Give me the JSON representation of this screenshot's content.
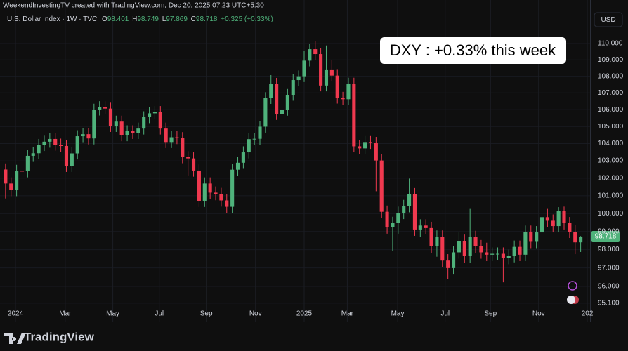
{
  "chart_data": {
    "type": "candlestick",
    "watermark": "WeekendInvestingTV created with TradingView.com, Dec 20, 2025 07:23 UTC+5:30",
    "title": "U.S. Dollar Index · 1W · TVC",
    "ohlc_labels": [
      "O",
      "H",
      "L",
      "C"
    ],
    "change": "+0.325 (+0.33%)",
    "currency": "USD",
    "annotation": "DXY : +0.33% this week",
    "brand": "TradingView",
    "up_color": "#4fb27b",
    "down_color": "#f0394f",
    "log_scale": true,
    "grid": true,
    "open": [
      102.5,
      101.7,
      101.33,
      102.42,
      102.4,
      103.29,
      103.44,
      103.92,
      104.11,
      104.27,
      103.94,
      103.86,
      102.71,
      103.43,
      104.43,
      104.55,
      104.3,
      106.0,
      106.15,
      106.06,
      105.03,
      105.29,
      104.49,
      104.72,
      104.62,
      104.88,
      105.55,
      105.78,
      105.86,
      104.88,
      104.09,
      104.37,
      104.32,
      103.21,
      103.14,
      102.44,
      100.72,
      101.7,
      101.18,
      101.1,
      100.74,
      100.38,
      102.49,
      102.89,
      103.49,
      104.26,
      104.28,
      104.99,
      106.69,
      107.55,
      105.74,
      105.99,
      106.88,
      107.77,
      108.0,
      108.95,
      109.65,
      109.35,
      107.44,
      108.37,
      108.04,
      106.71,
      106.62,
      107.56,
      103.84,
      103.72,
      104.09,
      104.04,
      103.02,
      100.1,
      99.23,
      99.47,
      100.04,
      100.42,
      101.09,
      99.11,
      99.33,
      99.19,
      98.18,
      98.71,
      97.4,
      96.99,
      97.85,
      98.48,
      97.64,
      98.69,
      98.18,
      97.85,
      97.72,
      97.77,
      97.77,
      97.55,
      97.65,
      98.15,
      97.72,
      98.98,
      98.43,
      98.95,
      99.8,
      99.6,
      99.3,
      100.15,
      99.46,
      98.99,
      98.401
    ],
    "high": [
      102.85,
      102.05,
      102.77,
      102.77,
      103.64,
      103.79,
      104.27,
      104.46,
      104.62,
      104.62,
      104.29,
      104.21,
      103.78,
      104.78,
      104.9,
      104.9,
      106.35,
      106.5,
      106.5,
      106.41,
      105.64,
      105.64,
      105.07,
      105.07,
      105.23,
      105.9,
      106.13,
      106.21,
      106.21,
      105.23,
      104.72,
      104.72,
      104.67,
      103.56,
      103.49,
      102.79,
      102.05,
      102.05,
      101.53,
      101.45,
      101.09,
      102.84,
      103.24,
      103.84,
      104.61,
      104.63,
      105.34,
      107.04,
      108.07,
      107.9,
      106.34,
      107.23,
      108.12,
      108.35,
      109.54,
      110.0,
      110.17,
      109.7,
      109.88,
      109.0,
      108.39,
      107.06,
      107.91,
      107.91,
      104.19,
      104.44,
      104.44,
      104.39,
      103.37,
      100.45,
      99.82,
      100.39,
      100.77,
      101.98,
      101.44,
      99.68,
      99.68,
      99.54,
      99.06,
      99.06,
      97.75,
      98.2,
      98.95,
      98.83,
      100.26,
      99.04,
      98.53,
      98.38,
      98.12,
      98.12,
      98.12,
      98.0,
      98.5,
      98.5,
      99.33,
      99.33,
      99.3,
      100.15,
      100.26,
      99.95,
      100.36,
      100.39,
      99.81,
      99.34,
      98.749
    ],
    "low": [
      100.85,
      100.98,
      100.98,
      102.05,
      102.05,
      102.94,
      103.09,
      103.57,
      103.76,
      103.59,
      103.51,
      102.36,
      102.36,
      103.08,
      104.08,
      103.95,
      103.95,
      105.65,
      105.71,
      104.68,
      104.68,
      104.14,
      104.14,
      104.27,
      104.27,
      104.53,
      105.2,
      105.43,
      104.53,
      103.74,
      103.74,
      103.97,
      102.86,
      102.16,
      102.09,
      100.37,
      100.37,
      100.83,
      100.75,
      100.39,
      100.03,
      100.03,
      102.14,
      102.54,
      103.14,
      103.91,
      103.93,
      104.64,
      106.34,
      105.39,
      105.39,
      105.64,
      106.53,
      107.42,
      107.65,
      108.6,
      109.0,
      107.09,
      107.09,
      107.69,
      106.36,
      106.27,
      106.27,
      103.49,
      103.37,
      103.37,
      103.69,
      101.26,
      99.75,
      98.88,
      97.92,
      98.88,
      99.69,
      100.07,
      98.76,
      98.7,
      98.84,
      97.83,
      97.61,
      97.05,
      96.38,
      96.64,
      97.5,
      97.29,
      97.29,
      97.83,
      97.5,
      97.37,
      97.37,
      97.42,
      96.22,
      97.2,
      97.3,
      97.37,
      97.37,
      98.08,
      98.08,
      98.6,
      99.25,
      98.95,
      98.95,
      99.11,
      98.64,
      97.75,
      97.869
    ],
    "close": [
      101.7,
      101.33,
      102.42,
      102.4,
      103.29,
      103.44,
      103.92,
      104.11,
      104.27,
      103.94,
      103.86,
      102.71,
      103.43,
      104.43,
      104.55,
      104.3,
      106.0,
      106.15,
      106.06,
      105.03,
      105.29,
      104.49,
      104.72,
      104.62,
      104.88,
      105.55,
      105.78,
      105.86,
      104.88,
      104.09,
      104.37,
      104.32,
      103.21,
      103.14,
      102.44,
      100.72,
      101.7,
      101.18,
      101.1,
      100.74,
      100.38,
      102.49,
      102.89,
      103.49,
      104.26,
      104.28,
      104.99,
      106.69,
      107.55,
      105.74,
      105.99,
      106.88,
      107.77,
      108.0,
      108.95,
      109.65,
      109.35,
      107.44,
      108.37,
      108.04,
      106.71,
      106.62,
      107.56,
      103.84,
      103.72,
      104.09,
      104.04,
      103.02,
      100.1,
      99.23,
      99.47,
      100.04,
      100.42,
      101.09,
      99.11,
      99.33,
      99.19,
      98.18,
      98.71,
      97.4,
      96.99,
      97.85,
      98.48,
      97.64,
      98.69,
      98.18,
      97.85,
      97.72,
      97.77,
      97.77,
      97.55,
      97.65,
      98.15,
      97.72,
      98.98,
      98.43,
      98.95,
      99.8,
      99.6,
      99.3,
      100.15,
      99.46,
      98.99,
      98.4,
      98.718
    ],
    "xlim": [
      -1,
      105.7
    ],
    "xticks": [
      {
        "value": 1.8,
        "label": "2024"
      },
      {
        "value": 10.8,
        "label": "Mar"
      },
      {
        "value": 19.4,
        "label": "May"
      },
      {
        "value": 27.8,
        "label": "Jul"
      },
      {
        "value": 36.3,
        "label": "Sep"
      },
      {
        "value": 45.2,
        "label": "Nov"
      },
      {
        "value": 54.0,
        "label": "2025"
      },
      {
        "value": 61.8,
        "label": "Mar"
      },
      {
        "value": 70.9,
        "label": "May"
      },
      {
        "value": 79.5,
        "label": "Jul"
      },
      {
        "value": 87.7,
        "label": "Sep"
      },
      {
        "value": 96.4,
        "label": "Nov"
      },
      {
        "value": 105.2,
        "label": "202"
      }
    ],
    "ylim": [
      94.24,
      111.92
    ],
    "yticks": [
      {
        "value": 110,
        "label": "110.000"
      },
      {
        "value": 109,
        "label": "109.000"
      },
      {
        "value": 108,
        "label": "108.000"
      },
      {
        "value": 107,
        "label": "107.000"
      },
      {
        "value": 106,
        "label": "106.000"
      },
      {
        "value": 105,
        "label": "105.000"
      },
      {
        "value": 104,
        "label": "104.000"
      },
      {
        "value": 103,
        "label": "103.000"
      },
      {
        "value": 102,
        "label": "102.000"
      },
      {
        "value": 101,
        "label": "101.000"
      },
      {
        "value": 100,
        "label": "100.000"
      },
      {
        "value": 99,
        "label": "99.000"
      },
      {
        "value": 98,
        "label": "98.000"
      },
      {
        "value": 97,
        "label": "97.000"
      },
      {
        "value": 96,
        "label": "96.000"
      },
      {
        "value": 95.1,
        "label": "95.100"
      }
    ]
  }
}
